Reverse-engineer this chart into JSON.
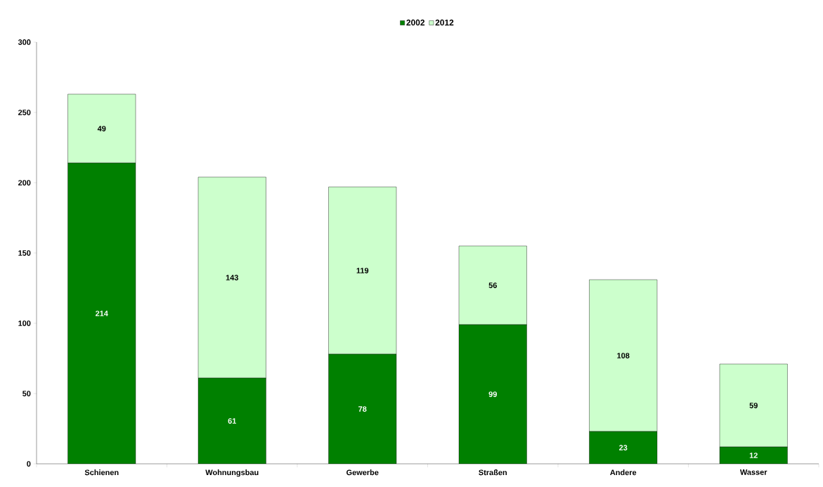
{
  "chart_data": {
    "type": "bar",
    "stacked": true,
    "categories": [
      "Schienen",
      "Wohnungsbau",
      "Gewerbe",
      "Straßen",
      "Andere",
      "Wasser"
    ],
    "series": [
      {
        "name": "2002",
        "color": "#008000",
        "values": [
          214,
          61,
          78,
          99,
          23,
          12
        ]
      },
      {
        "name": "2012",
        "color": "#ccffcc",
        "values": [
          49,
          143,
          119,
          56,
          108,
          59
        ]
      }
    ],
    "ylim": [
      0,
      300
    ],
    "yticks": [
      0,
      50,
      100,
      150,
      200,
      250,
      300
    ],
    "data_labels": true,
    "legend": "top"
  }
}
